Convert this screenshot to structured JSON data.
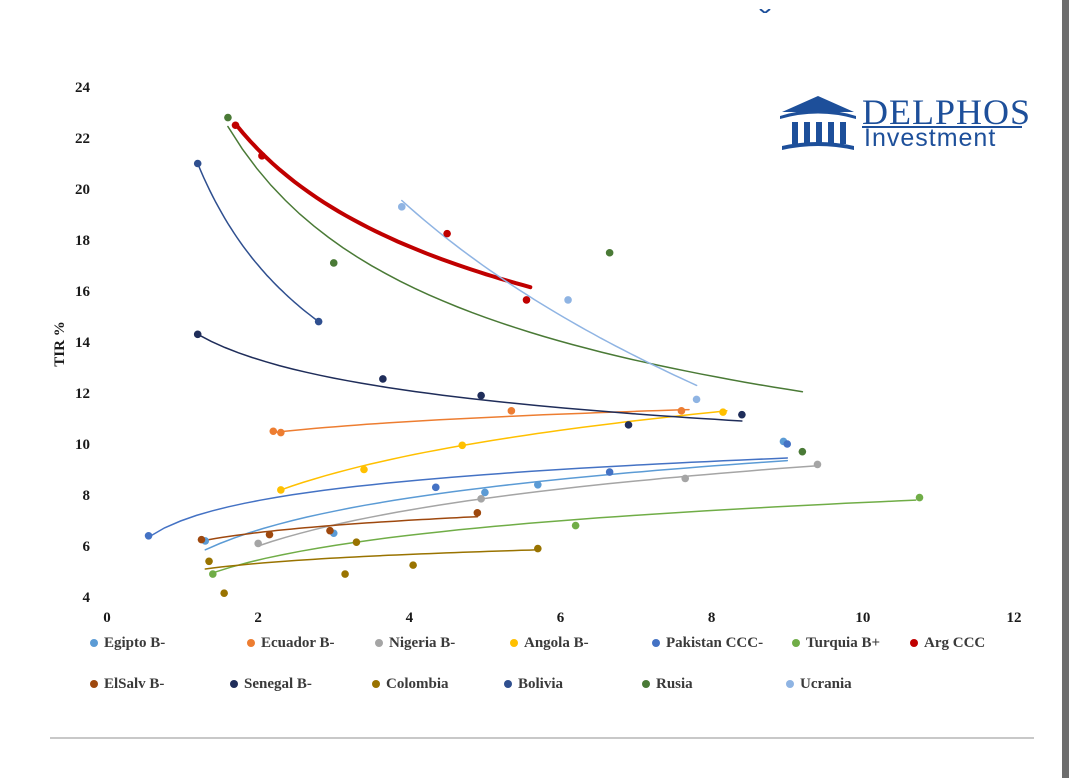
{
  "logo": {
    "line1": "DELPHOS",
    "line2": "Investment",
    "color": "#1d4f9a"
  },
  "chart_data": {
    "type": "scatter",
    "title": "",
    "xlabel": "",
    "ylabel": "TIR %",
    "xlim": [
      0,
      12
    ],
    "ylim": [
      4,
      24
    ],
    "x_ticks": [
      0,
      2,
      4,
      6,
      8,
      10,
      12
    ],
    "y_ticks": [
      4,
      6,
      8,
      10,
      12,
      14,
      16,
      18,
      20,
      22,
      24
    ],
    "grid": false,
    "legend_position": "bottom",
    "series": [
      {
        "name": "Egipto B-",
        "color": "#5b9bd5",
        "points": [
          [
            1.3,
            6.2
          ],
          [
            3.0,
            6.5
          ],
          [
            5.0,
            8.1
          ],
          [
            5.7,
            8.4
          ],
          [
            8.95,
            10.1
          ]
        ],
        "trend": {
          "kind": "log",
          "x": [
            1.3,
            9.0
          ],
          "y_start": 5.85,
          "y_end": 9.35,
          "width": 1.5
        }
      },
      {
        "name": "Ecuador B-",
        "color": "#ed7d31",
        "points": [
          [
            2.2,
            10.5
          ],
          [
            2.3,
            10.45
          ],
          [
            5.35,
            11.3
          ],
          [
            7.6,
            11.3
          ]
        ],
        "trend": {
          "kind": "log",
          "x": [
            2.2,
            7.7
          ],
          "y_start": 10.45,
          "y_end": 11.35,
          "width": 1.5
        }
      },
      {
        "name": "Nigeria B-",
        "color": "#a5a5a5",
        "points": [
          [
            2.0,
            6.1
          ],
          [
            4.95,
            7.85
          ],
          [
            7.65,
            8.65
          ],
          [
            9.4,
            9.2
          ]
        ],
        "trend": {
          "kind": "log",
          "x": [
            2.0,
            9.4
          ],
          "y_start": 6.0,
          "y_end": 9.15,
          "width": 1.5
        }
      },
      {
        "name": "Angola B-",
        "color": "#ffc000",
        "points": [
          [
            2.3,
            8.2
          ],
          [
            3.4,
            9.0
          ],
          [
            4.7,
            9.95
          ],
          [
            8.15,
            11.25
          ]
        ],
        "trend": {
          "kind": "log",
          "x": [
            2.3,
            8.2
          ],
          "y_start": 8.2,
          "y_end": 11.3,
          "width": 1.5
        }
      },
      {
        "name": "Pakistan CCC-",
        "color": "#4472c4",
        "points": [
          [
            0.55,
            6.4
          ],
          [
            4.35,
            8.3
          ],
          [
            6.65,
            8.9
          ],
          [
            9.0,
            10.0
          ]
        ],
        "trend": {
          "kind": "log",
          "x": [
            0.55,
            9.0
          ],
          "y_start": 6.35,
          "y_end": 9.45,
          "width": 1.5
        }
      },
      {
        "name": "Turquia B+",
        "color": "#70ad47",
        "points": [
          [
            1.4,
            4.9
          ],
          [
            6.2,
            6.8
          ],
          [
            10.75,
            7.9
          ]
        ],
        "trend": {
          "kind": "log",
          "x": [
            1.4,
            10.7
          ],
          "y_start": 4.95,
          "y_end": 7.8,
          "width": 1.5
        }
      },
      {
        "name": "Arg CCC",
        "color": "#c00000",
        "points": [
          [
            1.7,
            22.5
          ],
          [
            2.05,
            21.3
          ],
          [
            4.5,
            18.25
          ],
          [
            5.55,
            15.65
          ]
        ],
        "trend": {
          "kind": "power",
          "x": [
            1.7,
            5.6
          ],
          "y_start": 22.55,
          "y_end": 16.15,
          "width": 4
        }
      },
      {
        "name": "ElSalv B-",
        "color": "#9e480e",
        "points": [
          [
            1.25,
            6.25
          ],
          [
            2.15,
            6.45
          ],
          [
            2.95,
            6.6
          ],
          [
            4.9,
            7.3
          ]
        ],
        "trend": {
          "kind": "log",
          "x": [
            1.25,
            4.9
          ],
          "y_start": 6.2,
          "y_end": 7.15,
          "width": 1.5
        }
      },
      {
        "name": "Senegal B-",
        "color": "#1f2d5a",
        "points": [
          [
            1.2,
            14.3
          ],
          [
            3.65,
            12.55
          ],
          [
            4.95,
            11.9
          ],
          [
            6.9,
            10.75
          ],
          [
            8.4,
            11.15
          ]
        ],
        "trend": {
          "kind": "power",
          "x": [
            1.2,
            8.4
          ],
          "y_start": 14.3,
          "y_end": 10.9,
          "width": 1.5
        }
      },
      {
        "name": "Colombia",
        "color": "#997300",
        "points": [
          [
            1.35,
            5.4
          ],
          [
            1.55,
            4.15
          ],
          [
            3.15,
            4.9
          ],
          [
            3.3,
            6.15
          ],
          [
            4.05,
            5.25
          ],
          [
            5.7,
            5.9
          ]
        ],
        "trend": {
          "kind": "log",
          "x": [
            1.3,
            5.7
          ],
          "y_start": 5.1,
          "y_end": 5.85,
          "width": 1.5
        }
      },
      {
        "name": "Bolivia",
        "color": "#2f4f8f",
        "points": [
          [
            1.2,
            21.0
          ],
          [
            2.8,
            14.8
          ]
        ],
        "trend": {
          "kind": "power",
          "x": [
            1.2,
            2.8
          ],
          "y_start": 21.0,
          "y_end": 14.8,
          "width": 1.5
        }
      },
      {
        "name": "Rusia",
        "color": "#4a7a36",
        "points": [
          [
            1.6,
            22.8
          ],
          [
            3.0,
            17.1
          ],
          [
            6.65,
            17.5
          ],
          [
            9.2,
            9.7
          ]
        ],
        "trend": {
          "kind": "power",
          "x": [
            1.6,
            9.2
          ],
          "y_start": 22.45,
          "y_end": 12.05,
          "width": 1.5
        }
      },
      {
        "name": "Ucrania",
        "color": "#8fb4e3",
        "points": [
          [
            3.9,
            19.3
          ],
          [
            6.1,
            15.65
          ],
          [
            7.8,
            11.75
          ]
        ],
        "trend": {
          "kind": "log",
          "x": [
            3.9,
            7.8
          ],
          "y_start": 19.55,
          "y_end": 12.3,
          "width": 1.5
        }
      }
    ]
  }
}
